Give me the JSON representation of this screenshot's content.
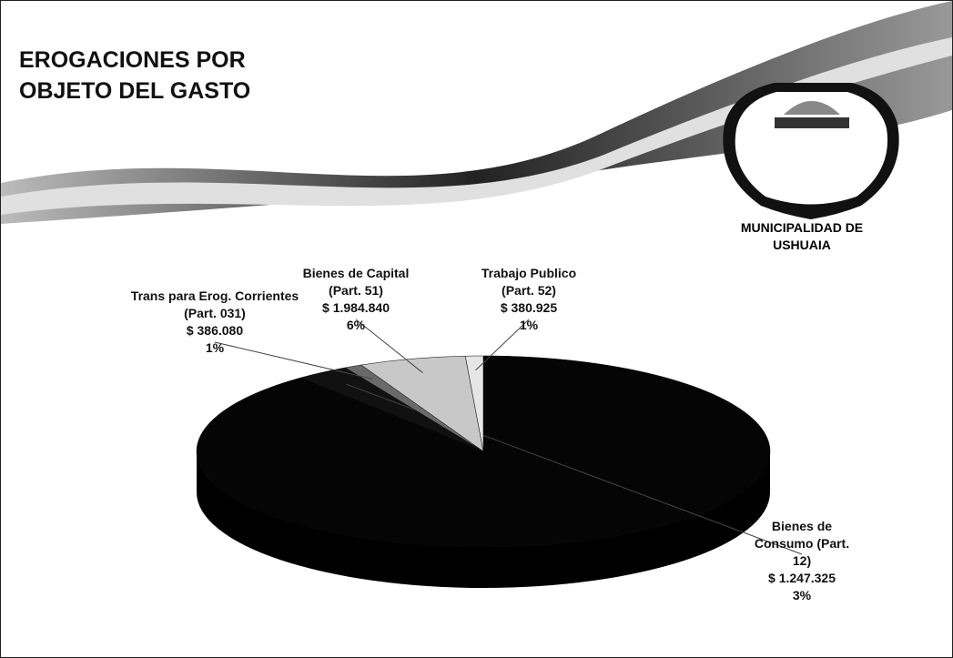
{
  "chart_data": {
    "type": "pie",
    "title": "EROGACIONES POR OBJETO DEL GASTO",
    "logo_text": "MUNICIPALIDAD DE USHUAIA",
    "categories": [
      null,
      "Bienes de Consumo (Part. 12)",
      "Trans para Erog. Corrientes (Part. 031)",
      "Bienes de Capital (Part. 51)",
      "Trabajo Publico (Part. 52)"
    ],
    "amounts": [
      null,
      "$ 1.247.325",
      "$ 386.080",
      "$ 1.984.840",
      "$ 380.925"
    ],
    "values": [
      89,
      3,
      1,
      6,
      1
    ],
    "value_labels": [
      null,
      "3%",
      "1%",
      "6%",
      "1%"
    ],
    "colors": [
      "#050505",
      "#111111",
      "#6a6a6a",
      "#c8c8c8",
      "#e6e6e6"
    ]
  }
}
